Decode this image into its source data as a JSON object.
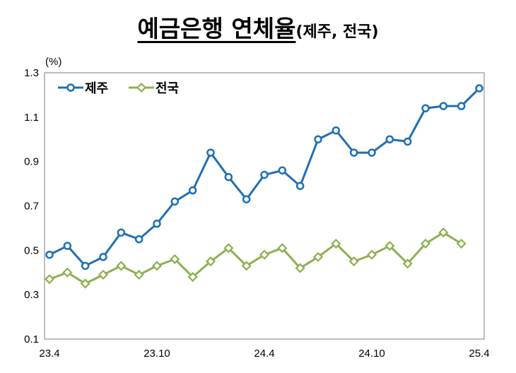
{
  "title": {
    "main": "예금은행 연체율",
    "sub": "(제주, 전국)"
  },
  "chart_data": {
    "type": "line",
    "title": "예금은행 연체율(제주, 전국)",
    "unit": "(%)",
    "ylim": [
      0.1,
      1.3
    ],
    "yticks": [
      "0.1",
      "0.3",
      "0.5",
      "0.7",
      "0.9",
      "1.1",
      "1.3"
    ],
    "x": [
      "23.4",
      "23.5",
      "23.6",
      "23.7",
      "23.8",
      "23.9",
      "23.10",
      "23.11",
      "23.12",
      "24.1",
      "24.2",
      "24.3",
      "24.4",
      "24.5",
      "24.6",
      "24.7",
      "24.8",
      "24.9",
      "24.10",
      "24.11",
      "24.12",
      "25.1",
      "25.2",
      "25.3",
      "25.4"
    ],
    "xtick_labels": [
      "23.4",
      "23.10",
      "24.4",
      "24.10",
      "25.4"
    ],
    "grid": false,
    "legend": "top-left",
    "series": [
      {
        "name": "제주",
        "color": "#1f6fb2",
        "marker": "circle",
        "values": [
          0.48,
          0.52,
          0.43,
          0.47,
          0.58,
          0.55,
          0.62,
          0.72,
          0.77,
          0.94,
          0.83,
          0.73,
          0.84,
          0.86,
          0.79,
          1.0,
          1.04,
          0.94,
          0.94,
          1.0,
          0.99,
          1.14,
          1.15,
          1.15,
          1.23
        ]
      },
      {
        "name": "전국",
        "color": "#8db050",
        "marker": "diamond",
        "values": [
          0.37,
          0.4,
          0.35,
          0.39,
          0.43,
          0.39,
          0.43,
          0.46,
          0.38,
          0.45,
          0.51,
          0.43,
          0.48,
          0.51,
          0.42,
          0.47,
          0.53,
          0.45,
          0.48,
          0.52,
          0.44,
          0.53,
          0.58,
          0.53,
          null
        ]
      }
    ]
  }
}
